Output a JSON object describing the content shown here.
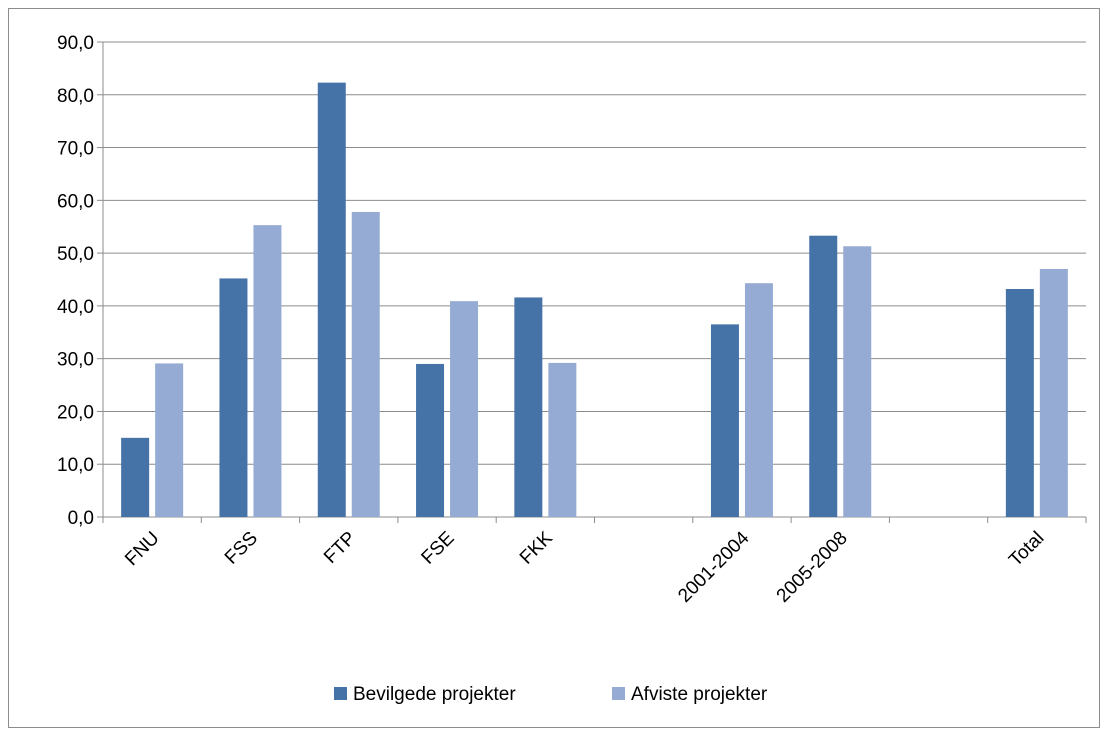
{
  "chart_data": {
    "type": "bar",
    "categories": [
      "FNU",
      "FSS",
      "FTP",
      "FSE",
      "FKK",
      "",
      "2001-2004",
      "2005-2008",
      "",
      "Total"
    ],
    "series": [
      {
        "name": "Bevilgede projekter",
        "color": "#4572A7",
        "values": [
          15.0,
          45.2,
          82.3,
          29.0,
          41.6,
          null,
          36.5,
          53.3,
          null,
          43.2
        ]
      },
      {
        "name": "Afviste projekter",
        "color": "#95ABD3",
        "values": [
          29.1,
          55.3,
          57.8,
          40.9,
          29.2,
          null,
          44.3,
          51.3,
          null,
          47.0
        ]
      }
    ],
    "ylim": [
      0,
      90
    ],
    "yticks": [
      "0,0",
      "10,0",
      "20,0",
      "30,0",
      "40,0",
      "50,0",
      "60,0",
      "70,0",
      "80,0",
      "90,0"
    ],
    "grid": true,
    "legend_position": "bottom",
    "title": "",
    "xlabel": "",
    "ylabel": ""
  }
}
